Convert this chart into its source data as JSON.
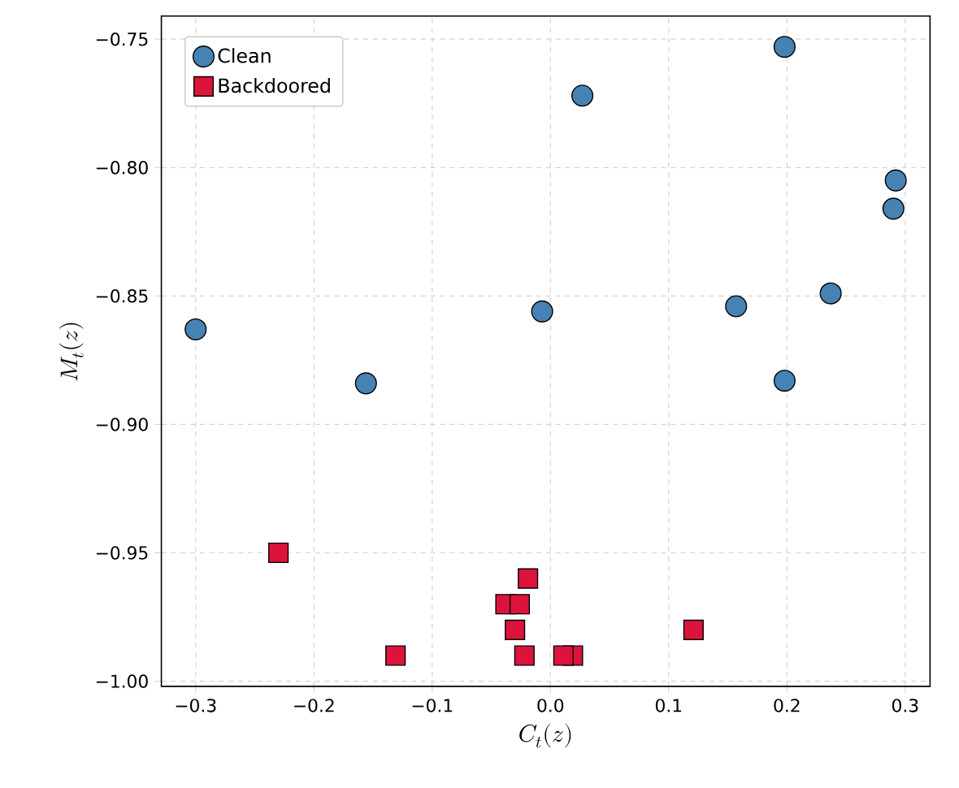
{
  "chart_data": {
    "type": "scatter",
    "xlabel": "C_t(z)",
    "ylabel": "M_t(z)",
    "xlim": [
      -0.329,
      0.321
    ],
    "ylim": [
      -1.002,
      -0.741
    ],
    "xticks": [
      {
        "value": -0.3,
        "label": "−0.3"
      },
      {
        "value": -0.2,
        "label": "−0.2"
      },
      {
        "value": -0.1,
        "label": "−0.1"
      },
      {
        "value": 0.0,
        "label": "0.0"
      },
      {
        "value": 0.1,
        "label": "0.1"
      },
      {
        "value": 0.2,
        "label": "0.2"
      },
      {
        "value": 0.3,
        "label": "0.3"
      }
    ],
    "yticks": [
      {
        "value": -1.0,
        "label": "−1.00"
      },
      {
        "value": -0.95,
        "label": "−0.95"
      },
      {
        "value": -0.9,
        "label": "−0.90"
      },
      {
        "value": -0.85,
        "label": "−0.85"
      },
      {
        "value": -0.8,
        "label": "−0.80"
      },
      {
        "value": -0.75,
        "label": "−0.75"
      }
    ],
    "grid": true,
    "legend": "top left",
    "series": [
      {
        "name": "Clean",
        "color": "#4682b4",
        "marker": "circle",
        "x": [
          -0.3,
          -0.156,
          -0.007,
          0.027,
          0.198,
          0.157,
          0.198,
          0.237,
          0.292,
          0.29
        ],
        "values": [
          -0.863,
          -0.884,
          -0.856,
          -0.772,
          -0.753,
          -0.854,
          -0.883,
          -0.849,
          -0.805,
          -0.816
        ]
      },
      {
        "name": "Backdoored",
        "color": "#dc143c",
        "marker": "square",
        "x": [
          -0.23,
          -0.131,
          -0.038,
          -0.026,
          -0.03,
          -0.019,
          -0.022,
          0.019,
          0.011,
          0.121
        ],
        "values": [
          -0.95,
          -0.99,
          -0.97,
          -0.97,
          -0.98,
          -0.96,
          -0.99,
          -0.99,
          -0.99,
          -0.98
        ]
      }
    ]
  }
}
